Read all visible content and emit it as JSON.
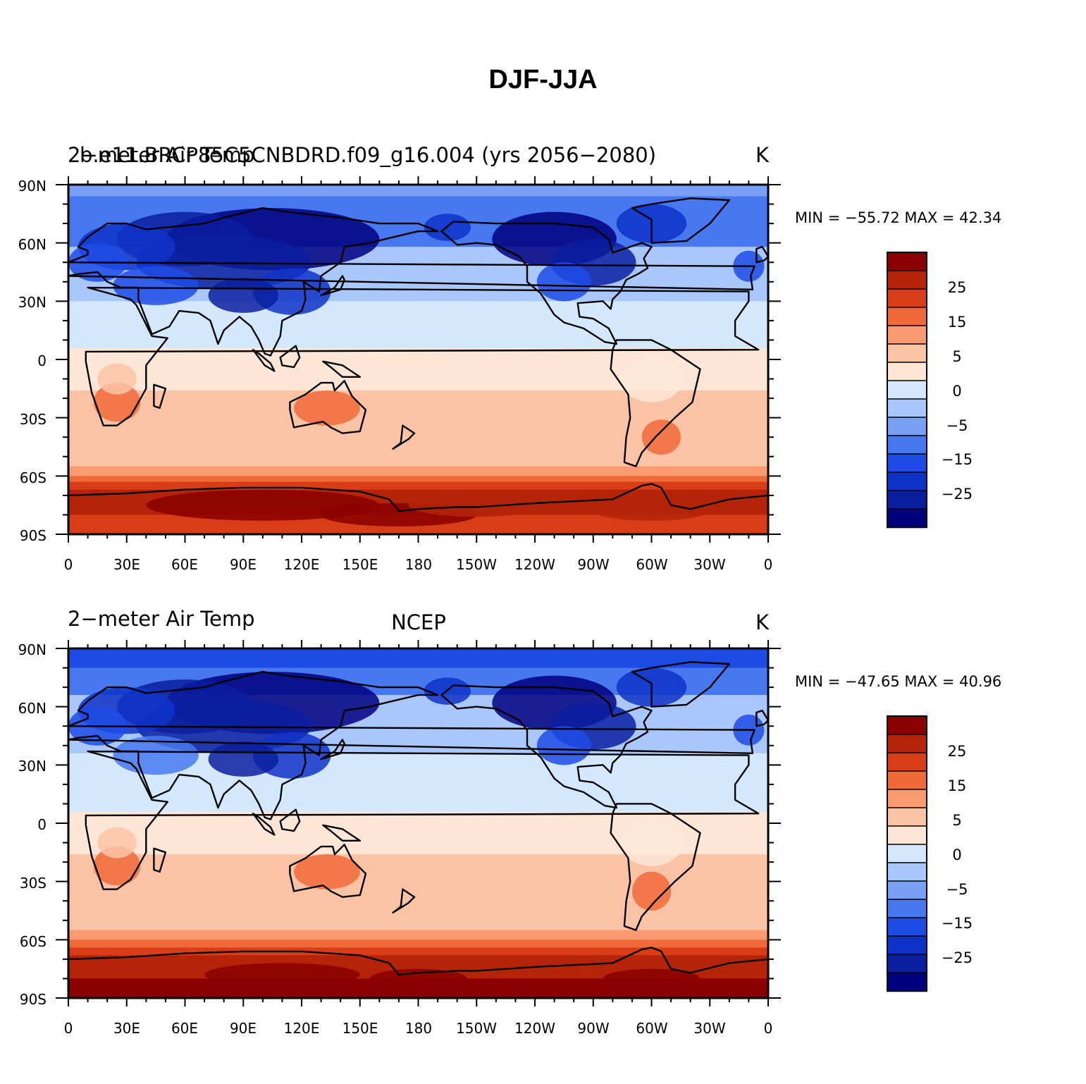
{
  "title": "DJF-JJA",
  "colors": {
    "ocean_background": "#ffffff",
    "coastline": "#000000",
    "palette": [
      "#00007f",
      "#0a1ea0",
      "#0f33c8",
      "#1e4be6",
      "#4878f0",
      "#7aa0f5",
      "#a9c7fb",
      "#d4e8fd",
      "#fde6d6",
      "#fbc3a5",
      "#f99a70",
      "#f06a3a",
      "#d83d18",
      "#b52408",
      "#8b0000"
    ]
  },
  "colorbar_labels": [
    "25",
    "15",
    "5",
    "0",
    "−5",
    "−15",
    "−25"
  ],
  "panels": [
    {
      "id": "model",
      "left_title": "2−meter Air Temp",
      "overlap_title": "b.e11.BRCP85C5CNBDRD.f09_g16.004 (yrs 2056−2080)",
      "center_title": "",
      "units": "K",
      "stats_label": "MIN = −55.72 MAX =   42.34",
      "min": -55.72,
      "max": 42.34
    },
    {
      "id": "obs",
      "left_title": "2−meter Air Temp",
      "overlap_title": "",
      "center_title": "NCEP",
      "units": "K",
      "stats_label": "MIN = −47.65 MAX =   40.96",
      "min": -47.65,
      "max": 40.96
    }
  ],
  "axes": {
    "lat_labels": [
      "90N",
      "60N",
      "30N",
      "0",
      "30S",
      "60S",
      "90S"
    ],
    "lon_labels": [
      "0",
      "30E",
      "60E",
      "90E",
      "120E",
      "150E",
      "180",
      "150W",
      "120W",
      "90W",
      "60W",
      "30W",
      "0"
    ]
  }
}
